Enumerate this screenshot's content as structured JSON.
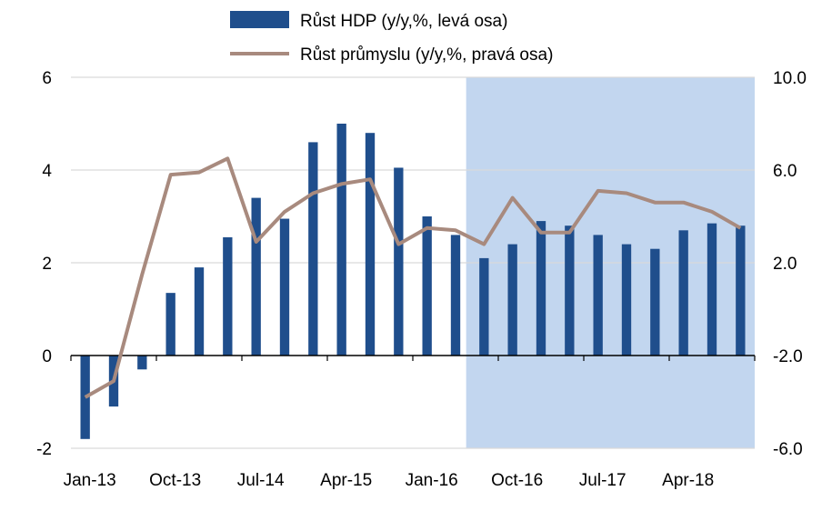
{
  "chart_data": {
    "type": "bar+line",
    "x": [
      "2013Q1",
      "2013Q2",
      "2013Q3",
      "2013Q4",
      "2014Q1",
      "2014Q2",
      "2014Q3",
      "2014Q4",
      "2015Q1",
      "2015Q2",
      "2015Q3",
      "2015Q4",
      "2016Q1",
      "2016Q2",
      "2016Q3",
      "2016Q4",
      "2017Q1",
      "2017Q2",
      "2017Q3",
      "2017Q4",
      "2018Q1",
      "2018Q2",
      "2018Q3",
      "2018Q4"
    ],
    "x_tick_labels": [
      "Jan-13",
      "Oct-13",
      "Jul-14",
      "Apr-15",
      "Jan-16",
      "Oct-16",
      "Jul-17",
      "Apr-18"
    ],
    "series": [
      {
        "name": "Růst HDP (y/y,%, levá osa)",
        "type": "bar",
        "axis": "left",
        "color": "#1f4e8c",
        "values": [
          -1.8,
          -1.1,
          -0.3,
          1.35,
          1.9,
          2.55,
          3.4,
          2.95,
          4.6,
          5.0,
          4.8,
          4.05,
          3.0,
          2.6,
          2.1,
          2.4,
          2.9,
          2.8,
          2.6,
          2.4,
          2.3,
          2.7,
          2.85,
          2.8
        ]
      },
      {
        "name": "Růst průmyslu (y/y,%, pravá osa)",
        "type": "line",
        "axis": "right",
        "color": "#a88a7e",
        "values": [
          -3.8,
          -3.1,
          1.5,
          5.8,
          5.9,
          6.5,
          2.9,
          4.2,
          5.0,
          5.4,
          5.6,
          2.8,
          3.5,
          3.4,
          2.8,
          4.8,
          3.3,
          3.3,
          5.1,
          5.0,
          4.6,
          4.6,
          4.2,
          3.5
        ]
      }
    ],
    "yleft": {
      "min": -2,
      "max": 6,
      "ticks": [
        "-2",
        "0",
        "2",
        "4",
        "6"
      ]
    },
    "yright": {
      "min": -6.0,
      "max": 10.0,
      "ticks": [
        "-6.0",
        "-2.0",
        "2.0",
        "6.0",
        "10.0"
      ]
    },
    "highlight": {
      "from": "2016Q3",
      "to": "2018Q4",
      "color": "#c2d6ef"
    },
    "grid": true,
    "legend_position": "top-center"
  }
}
